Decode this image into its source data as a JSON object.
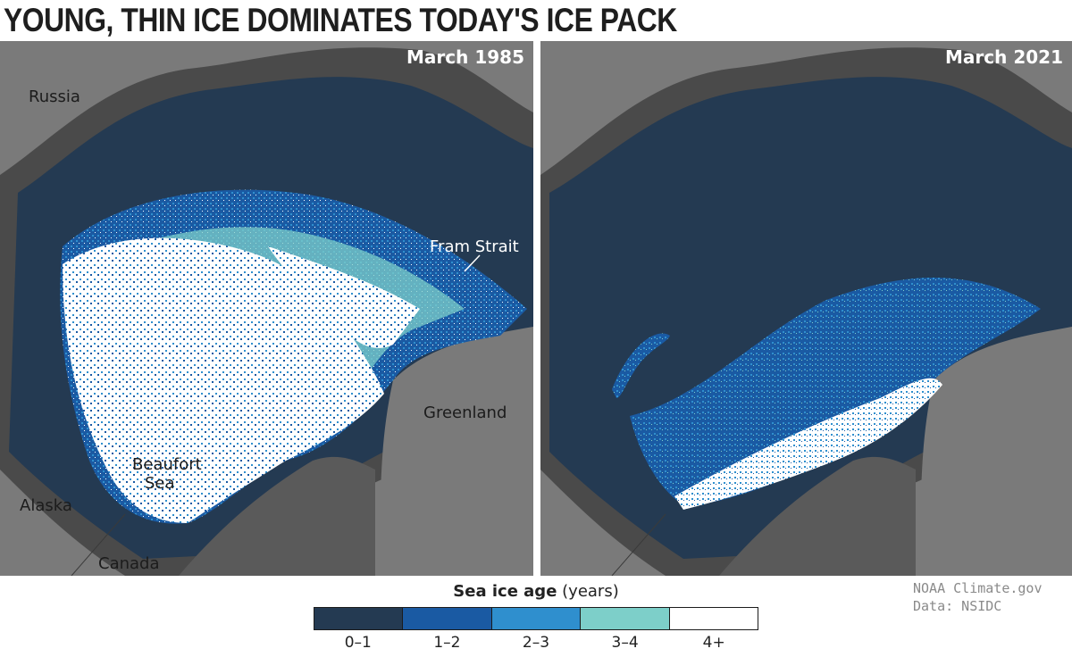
{
  "title": "YOUNG, THIN ICE DOMINATES TODAY'S ICE PACK",
  "panels": {
    "left": {
      "label": "March 1985",
      "places": {
        "russia": "Russia",
        "fram": "Fram Strait",
        "greenland": "Greenland",
        "beaufort_1": "Beaufort",
        "beaufort_2": "Sea",
        "alaska": "Alaska",
        "canada": "Canada"
      }
    },
    "right": {
      "label": "March 2021"
    }
  },
  "legend": {
    "title_bold": "Sea ice age",
    "title_unit": "(years)",
    "categories": [
      {
        "label": "0–1",
        "color": "#243a52"
      },
      {
        "label": "1–2",
        "color": "#1a5aa3"
      },
      {
        "label": "2–3",
        "color": "#2f8fce"
      },
      {
        "label": "3–4",
        "color": "#7dcfc9"
      },
      {
        "label": "4+",
        "color": "#ffffff"
      }
    ]
  },
  "colors": {
    "land": "#7a7a7a",
    "coast_band": "#4a4a4a",
    "ocean": "#243a52"
  },
  "credit": {
    "line1": "NOAA Climate.gov",
    "line2": "Data: NSIDC"
  }
}
